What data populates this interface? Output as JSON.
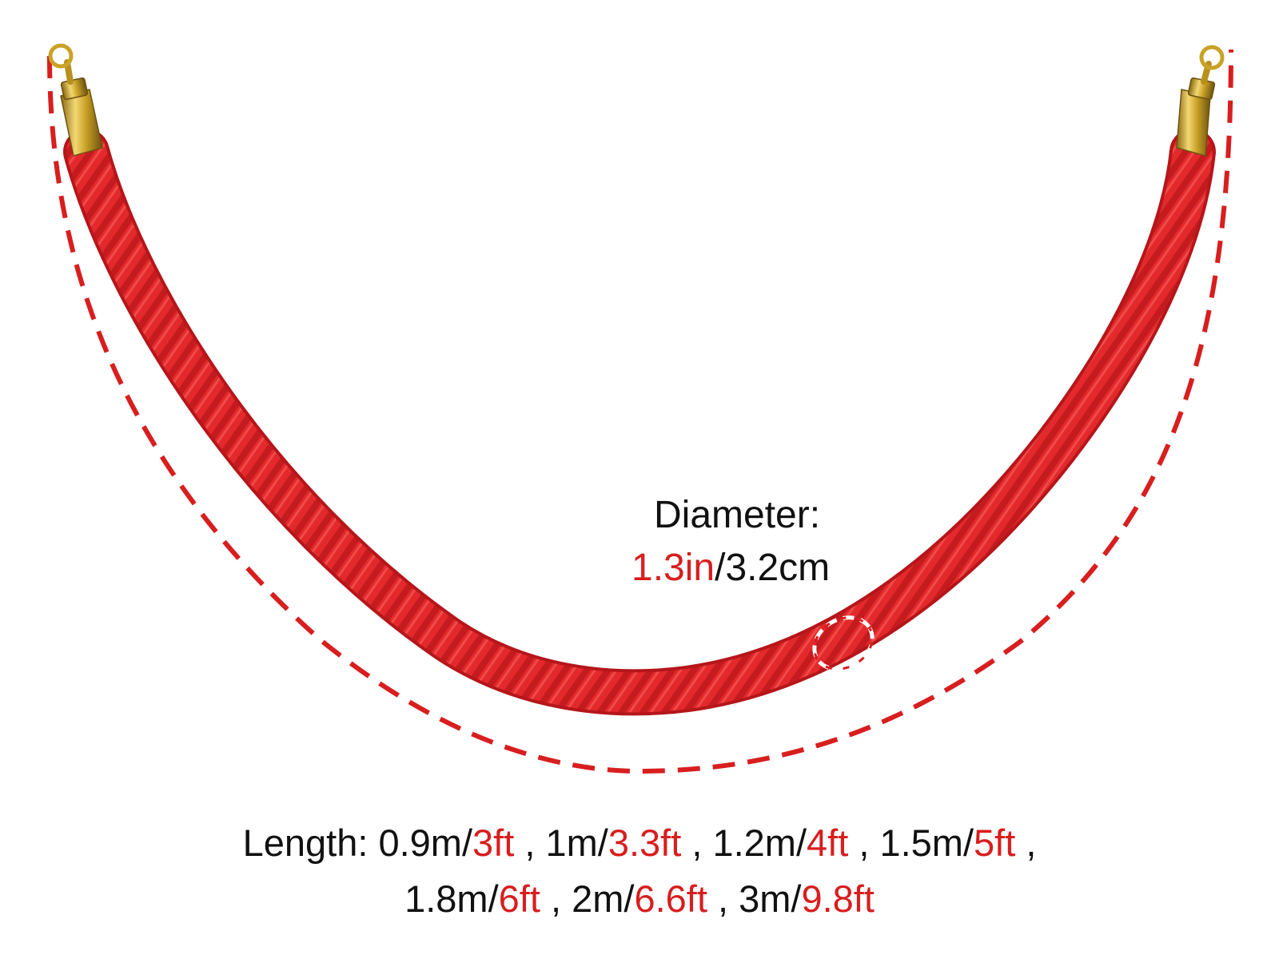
{
  "colors": {
    "rope": "#e0282a",
    "rope_shadow": "#b5161a",
    "dash_line": "#d81e1e",
    "accent_text": "#d81e1e",
    "gold": "#c9a227",
    "background": "#ffffff"
  },
  "diameter": {
    "label": "Diameter:",
    "in_value": "1.3in",
    "sep": "/",
    "cm_value": "3.2cm"
  },
  "length": {
    "label": "Length:",
    "options": [
      {
        "metric": "0.9m/",
        "imperial": "3ft"
      },
      {
        "metric": "1m/",
        "imperial": "3.3ft"
      },
      {
        "metric": "1.2m/",
        "imperial": "4ft"
      },
      {
        "metric": "1.5m/",
        "imperial": "5ft"
      },
      {
        "metric": "1.8m/",
        "imperial": "6ft"
      },
      {
        "metric": "2m/",
        "imperial": "6.6ft"
      },
      {
        "metric": "3m/",
        "imperial": "9.8ft"
      }
    ],
    "separator": " , "
  },
  "icons": {
    "left_hook": "gold-snap-hook-icon",
    "right_hook": "gold-snap-hook-icon"
  }
}
